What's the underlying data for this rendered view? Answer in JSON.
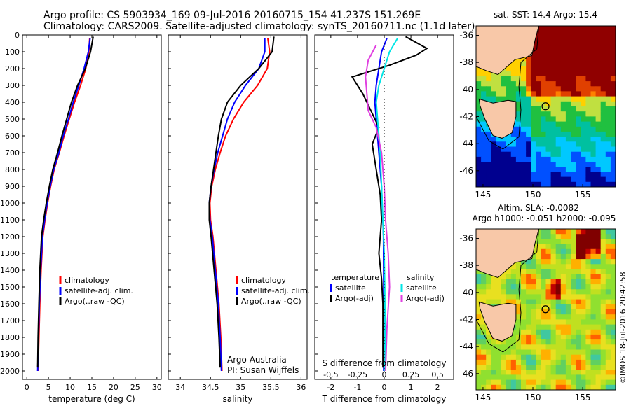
{
  "header": {
    "line1": "Argo profile: CS 5903934_169 09-Jul-2016 20160715_154 41.237S 151.269E",
    "line2": "Climatology: CARS2009. Satellite-adjusted climatology: synTS_20160711.nc (1.1d later)"
  },
  "colors": {
    "climatology": "#ff0000",
    "satellite": "#0000ff",
    "argo": "#000000",
    "sat_salinity": "#00e5e5",
    "argo_salinity": "#e040e0"
  },
  "stamp": "©IMOS 18-Jul-2016 20:42:58",
  "chart_data": [
    {
      "type": "line",
      "xlabel": "temperature (deg C)",
      "ylabel": "",
      "xlim": [
        -1,
        31
      ],
      "ylim": [
        2050,
        0
      ],
      "xticks": [
        0,
        5,
        10,
        15,
        20,
        25,
        30
      ],
      "yticks": [
        0,
        100,
        200,
        300,
        400,
        500,
        600,
        700,
        800,
        900,
        1000,
        1100,
        1200,
        1300,
        1400,
        1500,
        1600,
        1700,
        1800,
        1900,
        2000
      ],
      "legend": [
        "climatology",
        "satellite-adj. clim.",
        "Argo(..raw -QC)"
      ],
      "series": [
        {
          "name": "climatology",
          "color": "#ff0000",
          "x": [
            14.5,
            14.3,
            13.6,
            12.4,
            11.0,
            9.8,
            8.6,
            7.5,
            6.3,
            5.5,
            4.8,
            4.2,
            3.7,
            3.3,
            3.0,
            2.8,
            2.6
          ],
          "y": [
            20,
            100,
            200,
            300,
            400,
            500,
            600,
            700,
            800,
            900,
            1000,
            1100,
            1200,
            1400,
            1600,
            1800,
            2000
          ]
        },
        {
          "name": "satellite-adj. clim.",
          "color": "#0000ff",
          "x": [
            14.6,
            14.2,
            13.2,
            12.0,
            10.7,
            9.6,
            8.4,
            7.4,
            6.2,
            5.4,
            4.7,
            4.1,
            3.6,
            3.2,
            2.9,
            2.7,
            2.5
          ],
          "y": [
            20,
            100,
            200,
            300,
            400,
            500,
            600,
            700,
            800,
            900,
            1000,
            1100,
            1200,
            1400,
            1600,
            1800,
            2000
          ]
        },
        {
          "name": "Argo(..raw -QC)",
          "color": "#000000",
          "x": [
            15.3,
            14.7,
            13.5,
            11.7,
            10.3,
            9.2,
            8.1,
            7.1,
            6.0,
            5.2,
            4.5,
            3.9,
            3.4,
            3.0,
            2.8,
            2.6,
            2.5
          ],
          "y": [
            10,
            100,
            200,
            300,
            400,
            500,
            600,
            700,
            800,
            900,
            1000,
            1100,
            1200,
            1400,
            1600,
            1800,
            1980
          ]
        }
      ]
    },
    {
      "type": "line",
      "xlabel": "salinity",
      "ylabel": "",
      "xlim": [
        33.8,
        36.1
      ],
      "ylim": [
        2050,
        0
      ],
      "xticks": [
        34,
        34.5,
        35,
        35.5,
        36
      ],
      "xticklabels": [
        "34",
        "34.5",
        "35",
        "35.5",
        "36"
      ],
      "legend": [
        "climatology",
        "satellite-adj. clim.",
        "Argo(..raw -QC)"
      ],
      "annotation": [
        "Argo Australia",
        "PI: Susan Wijffels"
      ],
      "series": [
        {
          "name": "climatology",
          "color": "#ff0000",
          "x": [
            35.45,
            35.48,
            35.44,
            35.28,
            35.05,
            34.88,
            34.75,
            34.66,
            34.58,
            34.52,
            34.49,
            34.5,
            34.54,
            34.59,
            34.64,
            34.67,
            34.69
          ],
          "y": [
            20,
            100,
            200,
            300,
            400,
            500,
            600,
            700,
            800,
            900,
            1000,
            1100,
            1200,
            1400,
            1600,
            1800,
            2000
          ]
        },
        {
          "name": "satellite-adj. clim.",
          "color": "#0000ff",
          "x": [
            35.4,
            35.4,
            35.3,
            35.08,
            34.9,
            34.78,
            34.7,
            34.62,
            34.56,
            34.51,
            34.48,
            34.49,
            34.53,
            34.58,
            34.63,
            34.66,
            34.68
          ],
          "y": [
            20,
            100,
            200,
            300,
            400,
            500,
            600,
            700,
            800,
            900,
            1000,
            1100,
            1200,
            1400,
            1600,
            1800,
            2000
          ]
        },
        {
          "name": "Argo(..raw -QC)",
          "color": "#000000",
          "x": [
            35.55,
            35.52,
            35.3,
            35.0,
            34.78,
            34.68,
            34.63,
            34.59,
            34.55,
            34.51,
            34.48,
            34.48,
            34.51,
            34.56,
            34.61,
            34.64,
            34.66
          ],
          "y": [
            10,
            100,
            200,
            300,
            400,
            500,
            600,
            700,
            800,
            900,
            1000,
            1100,
            1200,
            1400,
            1600,
            1800,
            1980
          ]
        }
      ]
    },
    {
      "type": "line",
      "xlabel": "T difference from climatology",
      "xlabel_top": "S difference from climatology",
      "xlim": [
        -2.6,
        2.6
      ],
      "ylim": [
        2050,
        0
      ],
      "xticks": [
        -2,
        -1,
        0,
        1,
        2
      ],
      "top_ticks": [
        -0.5,
        -0.25,
        0,
        0.25,
        0.5
      ],
      "top_ticklabels": [
        "-0.5",
        "-0.25",
        "0",
        "0.25",
        "0.5"
      ],
      "legend_left": [
        "temperature",
        "satellite",
        "Argo(-adj)"
      ],
      "legend_right": [
        "salinity",
        "satellite",
        "Argo(-adj)"
      ],
      "series": [
        {
          "name": "satellite",
          "color": "#0000ff",
          "x": [
            0.1,
            -0.1,
            -0.2,
            -0.3,
            -0.35,
            -0.3,
            -0.25,
            -0.2,
            -0.15,
            -0.1,
            -0.08,
            -0.05,
            -0.03,
            -0.02,
            -0.02,
            -0.02,
            -0.02
          ],
          "y": [
            20,
            100,
            200,
            300,
            400,
            500,
            600,
            700,
            800,
            900,
            1000,
            1100,
            1200,
            1400,
            1600,
            1800,
            2000
          ]
        },
        {
          "name": "Argo(-adj)",
          "color": "#000000",
          "x": [
            0.8,
            1.6,
            1.2,
            0.2,
            -1.2,
            -0.8,
            -0.5,
            -0.2,
            -0.45,
            -0.3,
            -0.15,
            -0.1,
            -0.2,
            -0.1,
            -0.05,
            -0.05,
            -0.05
          ],
          "y": [
            10,
            80,
            120,
            180,
            250,
            350,
            450,
            550,
            650,
            800,
            950,
            1100,
            1300,
            1450,
            1600,
            1800,
            1980
          ]
        },
        {
          "name": "satellite",
          "color": "#00e5e5",
          "x": [
            0.5,
            0.2,
            0.0,
            -0.2,
            -0.3,
            -0.25,
            -0.2,
            -0.15,
            -0.1,
            -0.05,
            0.0,
            0.02,
            0.03,
            0.03,
            0.03
          ],
          "y": [
            20,
            100,
            200,
            300,
            400,
            500,
            600,
            700,
            900,
            1100,
            1300,
            1500,
            1700,
            1900,
            2000
          ]
        },
        {
          "name": "Argo(-adj)",
          "color": "#e040e0",
          "x": [
            -0.3,
            -0.6,
            -0.7,
            -0.65,
            -0.6,
            -0.3,
            -0.1,
            0.0,
            0.05,
            0.15,
            0.2,
            0.1,
            0.05
          ],
          "y": [
            60,
            150,
            250,
            350,
            450,
            550,
            700,
            900,
            1100,
            1300,
            1500,
            1750,
            2000
          ]
        }
      ]
    },
    {
      "type": "heatmap",
      "title": "sat. SST: 14.4  Argo: 15.4",
      "xlim": [
        144.3,
        158.3
      ],
      "ylim": [
        -47.2,
        -35.3
      ],
      "xticks": [
        145,
        150,
        155
      ],
      "yticks": [
        -36,
        -38,
        -40,
        -42,
        -44,
        -46
      ],
      "marker": {
        "lon": 151.269,
        "lat": -41.237
      }
    },
    {
      "type": "heatmap",
      "title": "Altim. SLA: -0.0082",
      "subtitle": "Argo h1000: -0.051 h2000: -0.095",
      "xlim": [
        144.3,
        158.3
      ],
      "ylim": [
        -47.2,
        -35.3
      ],
      "xticks": [
        145,
        150,
        155
      ],
      "yticks": [
        -36,
        -38,
        -40,
        -42,
        -44,
        -46
      ],
      "marker": {
        "lon": 151.269,
        "lat": -41.237
      }
    }
  ]
}
